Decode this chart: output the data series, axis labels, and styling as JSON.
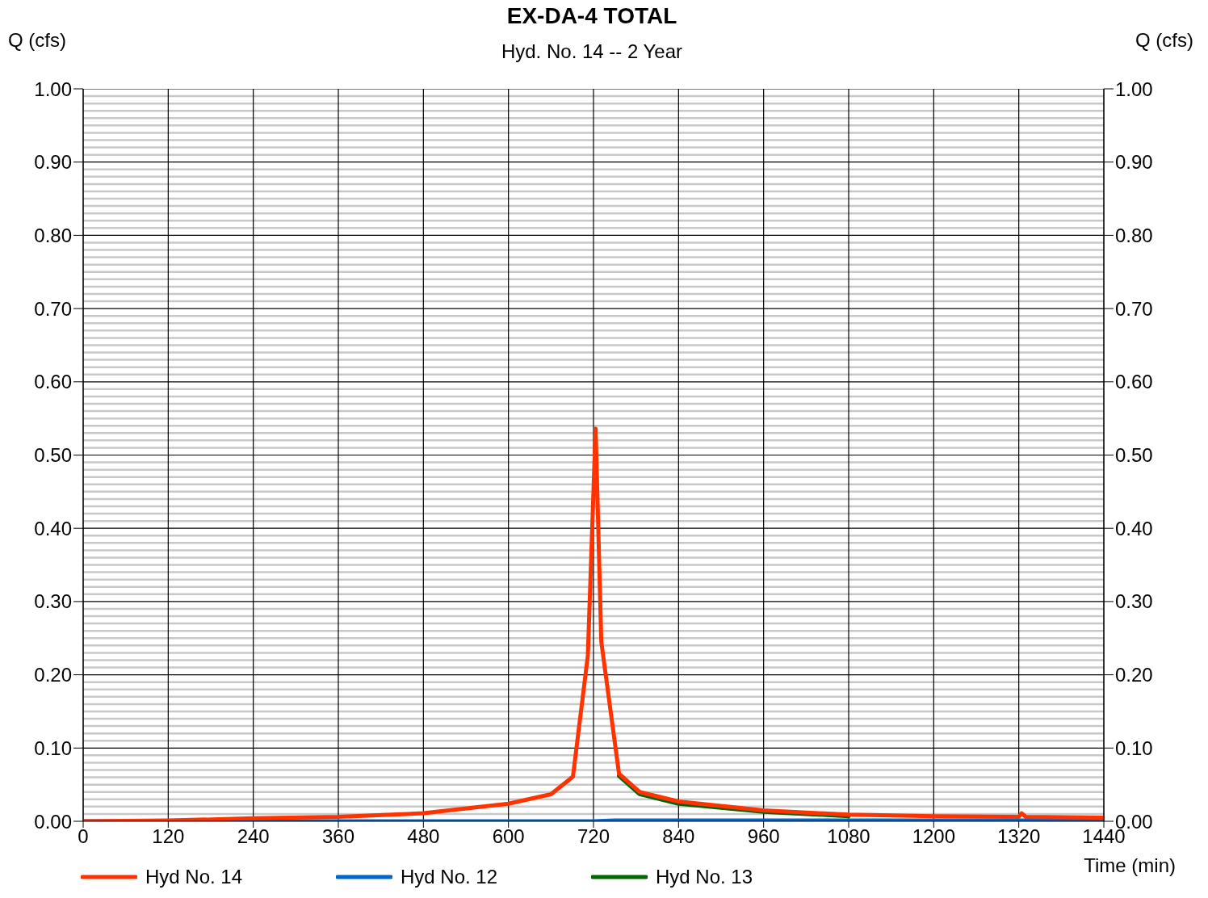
{
  "chart_data": {
    "type": "line",
    "title": "EX-DA-4 TOTAL",
    "subtitle": "Hyd. No. 14 -- 2 Year",
    "xlabel": "Time (min)",
    "ylabel": "Q (cfs)",
    "y2label": "Q (cfs)",
    "series": [
      {
        "name": "Hyd No. 14",
        "color": "#ff3300",
        "x": [
          0,
          120,
          240,
          360,
          480,
          600,
          660,
          691,
          712,
          723,
          731,
          756,
          785,
          840,
          960,
          1080,
          1200,
          1320,
          1324,
          1330,
          1440
        ],
        "values": [
          0,
          0.001,
          0.004,
          0.006,
          0.011,
          0.024,
          0.037,
          0.061,
          0.226,
          0.536,
          0.245,
          0.065,
          0.04,
          0.027,
          0.015,
          0.009,
          0.007,
          0.006,
          0.011,
          0.006,
          0.005
        ]
      },
      {
        "name": "Hyd No. 12",
        "color": "#0066cc",
        "x": [
          0,
          720,
          750,
          840,
          960,
          1080,
          1200,
          1320,
          1440
        ],
        "values": [
          0,
          0,
          0.001,
          0.001,
          0.001,
          0.001,
          0.001,
          0.001,
          0.001
        ]
      },
      {
        "name": "Hyd No. 13",
        "color": "#006600",
        "x": [
          756,
          785,
          840,
          960,
          1080
        ],
        "values": [
          0.062,
          0.037,
          0.024,
          0.013,
          0.007
        ]
      }
    ],
    "xlim": [
      0,
      1440
    ],
    "xticks": [
      0,
      120,
      240,
      360,
      480,
      600,
      720,
      840,
      960,
      1080,
      1200,
      1320,
      1440
    ],
    "ylim": [
      0,
      1
    ],
    "yticks": [
      {
        "value": 0,
        "label": "0.00"
      },
      {
        "value": 0.01,
        "label": null
      },
      {
        "value": 0.02,
        "label": null
      },
      {
        "value": 0.03,
        "label": null
      },
      {
        "value": 0.04,
        "label": null
      },
      {
        "value": 0.05,
        "label": null
      },
      {
        "value": 0.06,
        "label": null
      },
      {
        "value": 0.07,
        "label": null
      },
      {
        "value": 0.08,
        "label": null
      },
      {
        "value": 0.09,
        "label": null
      },
      {
        "value": 0.1,
        "label": "0.10"
      },
      {
        "value": 0.11,
        "label": null
      },
      {
        "value": 0.12,
        "label": null
      },
      {
        "value": 0.13,
        "label": null
      },
      {
        "value": 0.14,
        "label": null
      },
      {
        "value": 0.15,
        "label": null
      },
      {
        "value": 0.16,
        "label": null
      },
      {
        "value": 0.17,
        "label": null
      },
      {
        "value": 0.18,
        "label": null
      },
      {
        "value": 0.19,
        "label": null
      },
      {
        "value": 0.2,
        "label": "0.20"
      },
      {
        "value": 0.21,
        "label": null
      },
      {
        "value": 0.22,
        "label": null
      },
      {
        "value": 0.23,
        "label": null
      },
      {
        "value": 0.24,
        "label": null
      },
      {
        "value": 0.25,
        "label": null
      },
      {
        "value": 0.26,
        "label": null
      },
      {
        "value": 0.27,
        "label": null
      },
      {
        "value": 0.28,
        "label": null
      },
      {
        "value": 0.29,
        "label": null
      },
      {
        "value": 0.3,
        "label": "0.30"
      },
      {
        "value": 0.31,
        "label": null
      },
      {
        "value": 0.32,
        "label": null
      },
      {
        "value": 0.33,
        "label": null
      },
      {
        "value": 0.34,
        "label": null
      },
      {
        "value": 0.35,
        "label": null
      },
      {
        "value": 0.36,
        "label": null
      },
      {
        "value": 0.37,
        "label": null
      },
      {
        "value": 0.38,
        "label": null
      },
      {
        "value": 0.39,
        "label": null
      },
      {
        "value": 0.4,
        "label": "0.40"
      },
      {
        "value": 0.41,
        "label": null
      },
      {
        "value": 0.42,
        "label": null
      },
      {
        "value": 0.43,
        "label": null
      },
      {
        "value": 0.44,
        "label": null
      },
      {
        "value": 0.45,
        "label": null
      },
      {
        "value": 0.46,
        "label": null
      },
      {
        "value": 0.47,
        "label": null
      },
      {
        "value": 0.48,
        "label": null
      },
      {
        "value": 0.49,
        "label": null
      },
      {
        "value": 0.5,
        "label": "0.50"
      },
      {
        "value": 0.51,
        "label": null
      },
      {
        "value": 0.52,
        "label": null
      },
      {
        "value": 0.53,
        "label": null
      },
      {
        "value": 0.54,
        "label": null
      },
      {
        "value": 0.55,
        "label": null
      },
      {
        "value": 0.56,
        "label": null
      },
      {
        "value": 0.57,
        "label": null
      },
      {
        "value": 0.58,
        "label": null
      },
      {
        "value": 0.59,
        "label": null
      },
      {
        "value": 0.6,
        "label": "0.60"
      },
      {
        "value": 0.61,
        "label": null
      },
      {
        "value": 0.62,
        "label": null
      },
      {
        "value": 0.63,
        "label": null
      },
      {
        "value": 0.64,
        "label": null
      },
      {
        "value": 0.65,
        "label": null
      },
      {
        "value": 0.66,
        "label": null
      },
      {
        "value": 0.67,
        "label": null
      },
      {
        "value": 0.68,
        "label": null
      },
      {
        "value": 0.69,
        "label": null
      },
      {
        "value": 0.7,
        "label": "0.70"
      },
      {
        "value": 0.71,
        "label": null
      },
      {
        "value": 0.72,
        "label": null
      },
      {
        "value": 0.73,
        "label": null
      },
      {
        "value": 0.74,
        "label": null
      },
      {
        "value": 0.75,
        "label": null
      },
      {
        "value": 0.76,
        "label": null
      },
      {
        "value": 0.77,
        "label": null
      },
      {
        "value": 0.78,
        "label": null
      },
      {
        "value": 0.79,
        "label": null
      },
      {
        "value": 0.8,
        "label": "0.80"
      },
      {
        "value": 0.81,
        "label": null
      },
      {
        "value": 0.82,
        "label": null
      },
      {
        "value": 0.83,
        "label": null
      },
      {
        "value": 0.84,
        "label": null
      },
      {
        "value": 0.85,
        "label": null
      },
      {
        "value": 0.86,
        "label": null
      },
      {
        "value": 0.87,
        "label": null
      },
      {
        "value": 0.88,
        "label": null
      },
      {
        "value": 0.89,
        "label": null
      },
      {
        "value": 0.9,
        "label": "0.90"
      },
      {
        "value": 0.91,
        "label": null
      },
      {
        "value": 0.92,
        "label": null
      },
      {
        "value": 0.93,
        "label": null
      },
      {
        "value": 0.94,
        "label": null
      },
      {
        "value": 0.95,
        "label": null
      },
      {
        "value": 0.96,
        "label": null
      },
      {
        "value": 0.97,
        "label": null
      },
      {
        "value": 0.98,
        "label": null
      },
      {
        "value": 0.99,
        "label": null
      },
      {
        "value": 1,
        "label": "1.00"
      }
    ],
    "y2lim": [
      0,
      1
    ],
    "y2ticks": [
      {
        "value": 0,
        "label": "0.00"
      },
      {
        "value": 0.1,
        "label": "0.10"
      },
      {
        "value": 0.2,
        "label": "0.20"
      },
      {
        "value": 0.3,
        "label": "0.30"
      },
      {
        "value": 0.4,
        "label": "0.40"
      },
      {
        "value": 0.5,
        "label": "0.50"
      },
      {
        "value": 0.6,
        "label": "0.60"
      },
      {
        "value": 0.7,
        "label": "0.70"
      },
      {
        "value": 0.8,
        "label": "0.80"
      },
      {
        "value": 0.9,
        "label": "0.90"
      },
      {
        "value": 1,
        "label": "1.00"
      }
    ],
    "grid": true,
    "legend": "bottom left",
    "marker": "none",
    "line_style": "solid"
  }
}
